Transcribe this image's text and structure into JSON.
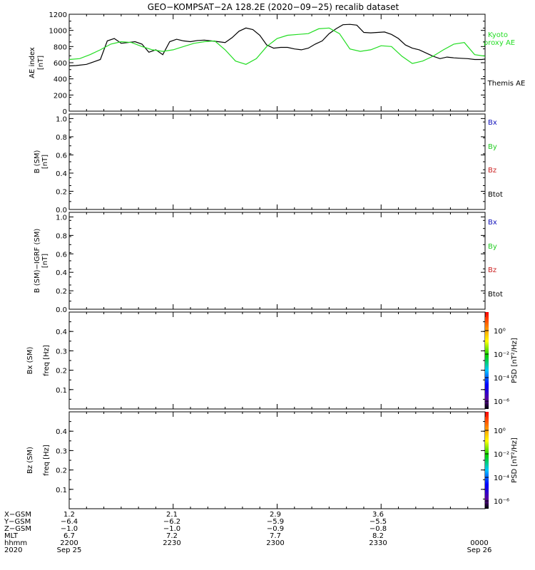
{
  "title": "GEO−KOMPSAT−2A 128.2E (2020−09−25) recalib dataset",
  "colors": {
    "themis": "#000000",
    "kyoto": "#22dd22",
    "bx": "#1111bb",
    "by": "#22cc22",
    "bz": "#cc2222",
    "btot": "#000000"
  },
  "panels": {
    "ae": {
      "ylabel_line1": "AE index",
      "ylabel_line2": "[nT]",
      "legend_kyoto_line1": "Kyoto",
      "legend_kyoto_line2": "proxy AE",
      "legend_themis": "Themis AE",
      "yticks": [
        "0",
        "200",
        "400",
        "600",
        "800",
        "1000",
        "1200"
      ]
    },
    "b": {
      "ylabel_line1": "B (SM)",
      "ylabel_line2": "[nT]",
      "legend": [
        "Bx",
        "By",
        "Bz",
        "Btot"
      ],
      "yticks": [
        "0.0",
        "0.2",
        "0.4",
        "0.6",
        "0.8",
        "1.0"
      ]
    },
    "bigrf": {
      "ylabel_line1": "B (SM)−IGRF (SM)",
      "ylabel_line2": "[nT]",
      "legend": [
        "Bx",
        "By",
        "Bz",
        "Btot"
      ],
      "yticks": [
        "0.0",
        "0.2",
        "0.4",
        "0.6",
        "0.8",
        "1.0"
      ]
    },
    "bx_psd": {
      "ylabel_line1": "Bx (SM)",
      "ylabel_line2": "freq [Hz]",
      "yticks": [
        "0.1",
        "0.2",
        "0.3",
        "0.4"
      ],
      "cbar_label": "PSD [nT²/Hz]",
      "cbar_ticks": [
        "10⁰",
        "10⁻²",
        "10⁻⁴",
        "10⁻⁶"
      ]
    },
    "bz_psd": {
      "ylabel_line1": "Bz (SM)",
      "ylabel_line2": "freq [Hz]",
      "yticks": [
        "0.1",
        "0.2",
        "0.3",
        "0.4"
      ],
      "cbar_label": "PSD [nT²/Hz]",
      "cbar_ticks": [
        "10⁰",
        "10⁻²",
        "10⁻⁴",
        "10⁻⁶"
      ]
    }
  },
  "ephemeris": {
    "row_labels": [
      "X−GSM",
      "Y−GSM",
      "Z−GSM",
      "MLT",
      "hhmm",
      "2020"
    ],
    "columns": [
      {
        "values": [
          "1.2",
          "−6.4",
          "−1.0",
          "6.7",
          "2200",
          "Sep 25"
        ]
      },
      {
        "values": [
          "2.1",
          "−6.2",
          "−1.0",
          "7.2",
          "2230",
          ""
        ]
      },
      {
        "values": [
          "2.9",
          "−5.9",
          "−0.9",
          "7.7",
          "2300",
          ""
        ]
      },
      {
        "values": [
          "3.6",
          "−5.5",
          "−0.8",
          "8.2",
          "2330",
          ""
        ]
      },
      {
        "values": [
          "",
          "",
          "",
          "",
          "0000",
          "Sep 26"
        ]
      }
    ]
  },
  "chart_data": [
    {
      "type": "line",
      "panel": "AE index",
      "xlabel": "hhmm",
      "x_range": [
        "2020-09-25 22:00",
        "2020-09-26 00:00"
      ],
      "ylim": [
        0,
        1200
      ],
      "series": [
        {
          "name": "Themis AE",
          "color": "#000000",
          "x": [
            "22:00",
            "22:02",
            "22:05",
            "22:07",
            "22:09",
            "22:11",
            "22:13",
            "22:15",
            "22:17",
            "22:19",
            "22:21",
            "22:23",
            "22:25",
            "22:27",
            "22:29",
            "22:31",
            "22:33",
            "22:35",
            "22:37",
            "22:39",
            "22:41",
            "22:43",
            "22:45",
            "22:47",
            "22:49",
            "22:51",
            "22:53",
            "22:55",
            "22:57",
            "22:59",
            "23:01",
            "23:03",
            "23:05",
            "23:07",
            "23:09",
            "23:11",
            "23:13",
            "23:15",
            "23:17",
            "23:19",
            "23:21",
            "23:23",
            "23:25",
            "23:27",
            "23:29",
            "23:31",
            "23:33",
            "23:35",
            "23:37",
            "23:39",
            "23:41",
            "23:43",
            "23:45",
            "23:47",
            "23:49",
            "23:51",
            "23:53",
            "23:55",
            "23:57",
            "23:59",
            "00:00"
          ],
          "values": [
            560,
            565,
            580,
            610,
            640,
            870,
            900,
            840,
            850,
            860,
            830,
            730,
            760,
            700,
            860,
            890,
            870,
            860,
            875,
            880,
            870,
            860,
            850,
            910,
            990,
            1030,
            1010,
            940,
            820,
            780,
            790,
            790,
            770,
            760,
            780,
            830,
            870,
            960,
            1020,
            1070,
            1075,
            1065,
            975,
            970,
            975,
            980,
            950,
            900,
            820,
            780,
            760,
            720,
            680,
            650,
            670,
            660,
            655,
            650,
            640,
            640,
            645
          ]
        },
        {
          "name": "Kyoto proxy AE",
          "color": "#22dd22",
          "x": [
            "22:00",
            "22:03",
            "22:06",
            "22:09",
            "22:12",
            "22:15",
            "22:18",
            "22:21",
            "22:24",
            "22:27",
            "22:30",
            "22:33",
            "22:36",
            "22:39",
            "22:42",
            "22:45",
            "22:48",
            "22:51",
            "22:54",
            "22:57",
            "23:00",
            "23:03",
            "23:06",
            "23:09",
            "23:12",
            "23:15",
            "23:18",
            "23:21",
            "23:24",
            "23:27",
            "23:30",
            "23:33",
            "23:36",
            "23:39",
            "23:42",
            "23:45",
            "23:48",
            "23:51",
            "23:54",
            "23:57",
            "00:00"
          ],
          "values": [
            640,
            650,
            700,
            760,
            830,
            860,
            850,
            800,
            760,
            740,
            760,
            800,
            840,
            860,
            870,
            760,
            620,
            580,
            650,
            800,
            900,
            940,
            950,
            960,
            1020,
            1030,
            960,
            770,
            740,
            760,
            810,
            800,
            680,
            590,
            620,
            680,
            760,
            830,
            850,
            700,
            680
          ]
        }
      ]
    },
    {
      "type": "line",
      "panel": "B (SM)",
      "ylim": [
        0.0,
        1.0
      ],
      "series": []
    },
    {
      "type": "line",
      "panel": "B (SM)−IGRF (SM)",
      "ylim": [
        0.0,
        1.0
      ],
      "series": []
    },
    {
      "type": "heatmap",
      "panel": "Bx (SM) freq",
      "ylim": [
        0.0,
        0.5
      ],
      "colorscale": "log PSD"
    },
    {
      "type": "heatmap",
      "panel": "Bz (SM) freq",
      "ylim": [
        0.0,
        0.5
      ],
      "colorscale": "log PSD"
    }
  ]
}
